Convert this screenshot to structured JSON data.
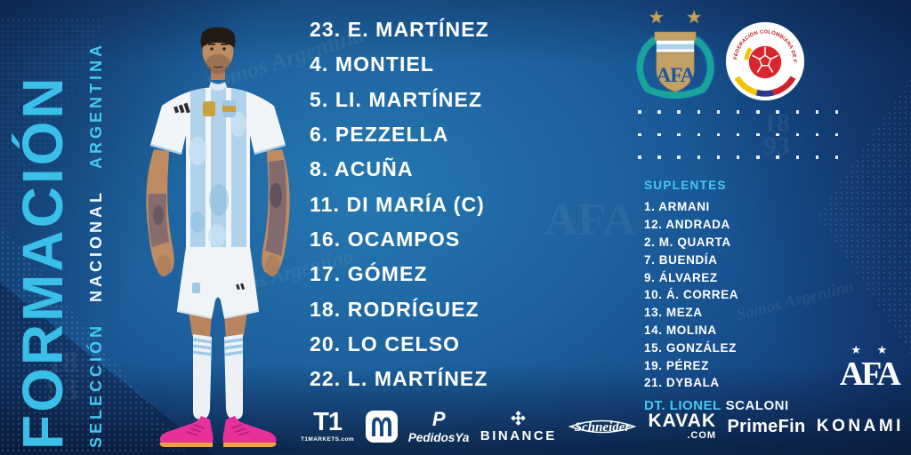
{
  "colors": {
    "accent_cyan": "#3FC6EE",
    "background_blue": "#1D629F",
    "dark_navy": "#0B244C",
    "star_gold": "#C6A259",
    "colombia_red": "#D9252B",
    "boots_pink": "#E8309A"
  },
  "left_banner": {
    "title": "FORMACIÓN",
    "subtitle_words": [
      "SELECCIÓN",
      "NACIONAL",
      "ARGENTINA"
    ]
  },
  "lineup": {
    "rows": [
      "23. E. MARTÍNEZ",
      "4. MONTIEL",
      "5. LI. MARTÍNEZ",
      "6. PEZZELLA",
      "8. ACUÑA",
      "11. DI MARÍA (C)",
      "16. OCAMPOS",
      "17. GÓMEZ",
      "18. RODRÍGUEZ",
      "20. LO CELSO",
      "22. L. MARTÍNEZ"
    ]
  },
  "subs": {
    "heading": "SUPLENTES",
    "rows": [
      "1. ARMANI",
      "12. ANDRADA",
      "2. M. QUARTA",
      "7. BUENDÍA",
      "9. ÁLVAREZ",
      "10. Á. CORREA",
      "13. MEZA",
      "14. MOLINA",
      "15. GONZÁLEZ",
      "19. PÉREZ",
      "21. DYBALA"
    ],
    "coach_prefix": "DT. LIONEL",
    "coach_name": "SCALONI"
  },
  "badges": {
    "argentina_icon": "argentina-afa-crest",
    "afa_label": "AFA",
    "colombia_icon": "colombia-fcf-crest",
    "colombia_text": "FEDERACIÓN COLOMBIANA DE FÚTBOL"
  },
  "afa_mark": {
    "stars": "★ ★",
    "label": "AFA"
  },
  "footer_sponsors": {
    "t1": {
      "label": "T1",
      "sub": "T1MARKETS.com"
    },
    "mcdonalds": {
      "icon": "golden-arches-icon"
    },
    "pedidosya": {
      "icon_letter": "P",
      "label": "PedidosYa"
    },
    "binance": {
      "icon": "binance-diamond-icon",
      "label": "BINANCE"
    },
    "schneider": {
      "label": "Schneider"
    },
    "kavak": {
      "label": "KAVAK",
      "sub": ".COM"
    },
    "primefin": {
      "label": "PrimeFin"
    },
    "konami": {
      "label": "KONAMI"
    }
  },
  "decor": {
    "script": "Somos Argentina",
    "year_top": "18",
    "year_bottom": "93",
    "afa_watermark": "AFA"
  }
}
